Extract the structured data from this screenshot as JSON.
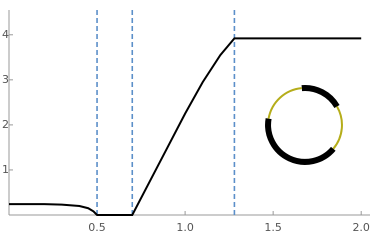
{
  "chart_data": {
    "type": "line",
    "x": [
      0,
      0.1,
      0.2,
      0.3,
      0.4,
      0.45,
      0.48,
      0.5,
      0.7,
      0.8,
      0.9,
      1.0,
      1.1,
      1.2,
      1.28,
      2.0
    ],
    "series": [
      {
        "color": "#000000",
        "values": [
          0.24,
          0.24,
          0.24,
          0.23,
          0.2,
          0.15,
          0.08,
          0,
          0,
          0.75,
          1.5,
          2.25,
          2.95,
          3.55,
          3.92,
          3.92
        ]
      }
    ],
    "vlines": [
      0.5,
      0.7,
      1.28
    ],
    "vline_color": "#5b8fc9",
    "xlim": [
      0,
      2.05
    ],
    "ylim": [
      0,
      4.55
    ],
    "xticks": [
      0.5,
      {
        "value": 1,
        "label": "1.0"
      },
      1.5,
      {
        "value": 2,
        "label": "2.0"
      }
    ],
    "yticks": [
      1,
      2,
      3,
      4
    ]
  }
}
